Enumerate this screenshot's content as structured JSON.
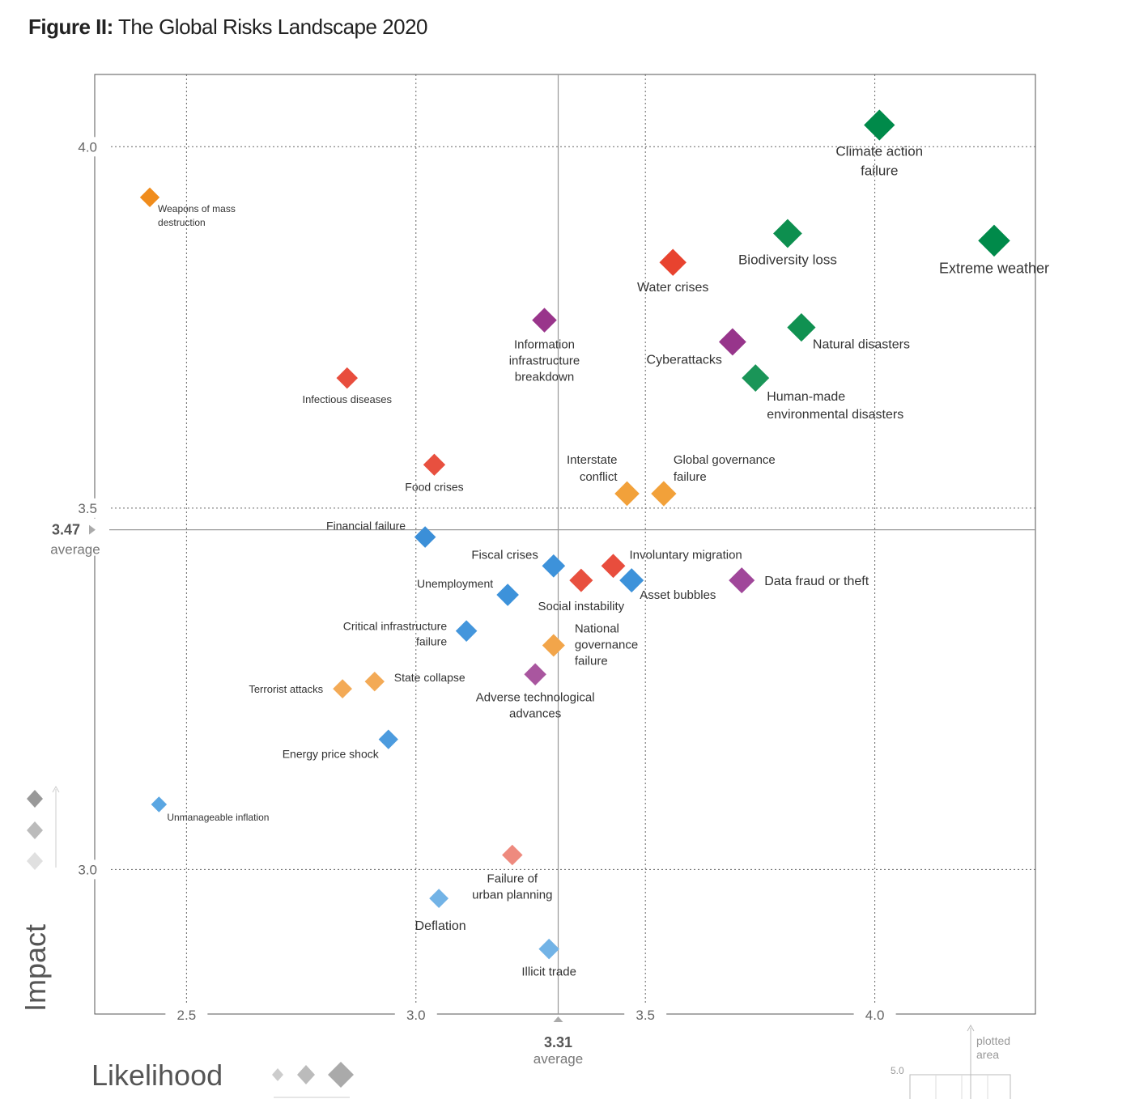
{
  "figure": {
    "prefix": "Figure II:",
    "title": "The Global Risks Landscape 2020"
  },
  "chart_data": {
    "type": "scatter",
    "title": "The Global Risks Landscape 2020",
    "xlabel": "Likelihood",
    "ylabel": "Impact",
    "xlim": [
      2.3,
      4.35
    ],
    "ylim": [
      2.8,
      4.1
    ],
    "x_ticks": [
      "2.5",
      "3.0",
      "3.5",
      "4.0"
    ],
    "y_ticks": [
      "4.0",
      "3.5",
      "3.0"
    ],
    "averages": {
      "x": {
        "value": 3.31,
        "label": "3.31",
        "text": "average"
      },
      "y": {
        "value": 3.47,
        "label": "3.47",
        "text": "average"
      }
    },
    "categories": {
      "Economic": "#3d8fd6",
      "Environmental": "#11895a",
      "Geopolitical": "#f29a2e",
      "Societal": "#e84c3d",
      "Technological": "#9b3c8f"
    },
    "points": [
      {
        "name": "Weapons of mass destruction",
        "lines": [
          "Weapons of mass",
          "destruction"
        ],
        "x": 2.42,
        "y": 3.93,
        "category": "Geopolitical",
        "color": "#f08c1c"
      },
      {
        "name": "Climate action failure",
        "lines": [
          "Climate action",
          "failure"
        ],
        "x": 4.01,
        "y": 4.03,
        "category": "Environmental",
        "color": "#008a4a"
      },
      {
        "name": "Biodiversity loss",
        "lines": [
          "Biodiversity loss"
        ],
        "x": 3.81,
        "y": 3.88,
        "category": "Environmental",
        "color": "#0d8f4f"
      },
      {
        "name": "Extreme weather",
        "lines": [
          "Extreme weather"
        ],
        "x": 4.26,
        "y": 3.87,
        "category": "Environmental",
        "color": "#008a4a"
      },
      {
        "name": "Water crises",
        "lines": [
          "Water crises"
        ],
        "x": 3.56,
        "y": 3.84,
        "category": "Societal",
        "color": "#e8432f"
      },
      {
        "name": "Information infrastructure breakdown",
        "lines": [
          "Information",
          "infrastructure",
          "breakdown"
        ],
        "x": 3.28,
        "y": 3.76,
        "category": "Technological",
        "color": "#99358b"
      },
      {
        "name": "Natural disasters",
        "lines": [
          "Natural disasters"
        ],
        "x": 3.84,
        "y": 3.75,
        "category": "Environmental",
        "color": "#109151"
      },
      {
        "name": "Cyberattacks",
        "lines": [
          "Cyberattacks"
        ],
        "x": 3.69,
        "y": 3.73,
        "category": "Technological",
        "color": "#97358b"
      },
      {
        "name": "Human-made environmental disasters",
        "lines": [
          "Human-made",
          "environmental disasters"
        ],
        "x": 3.74,
        "y": 3.68,
        "category": "Environmental",
        "color": "#1a9558"
      },
      {
        "name": "Infectious diseases",
        "lines": [
          "Infectious diseases"
        ],
        "x": 2.85,
        "y": 3.68,
        "category": "Societal",
        "color": "#e84d3d"
      },
      {
        "name": "Food crises",
        "lines": [
          "Food crises"
        ],
        "x": 3.04,
        "y": 3.56,
        "category": "Societal",
        "color": "#e8503f"
      },
      {
        "name": "Interstate conflict",
        "lines": [
          "Interstate",
          "conflict"
        ],
        "x": 3.46,
        "y": 3.52,
        "category": "Geopolitical",
        "color": "#f2a13a"
      },
      {
        "name": "Global governance failure",
        "lines": [
          "Global governance",
          "failure"
        ],
        "x": 3.54,
        "y": 3.52,
        "category": "Geopolitical",
        "color": "#f2a13a"
      },
      {
        "name": "Financial failure",
        "lines": [
          "Financial failure"
        ],
        "x": 3.02,
        "y": 3.46,
        "category": "Economic",
        "color": "#3b8fd8"
      },
      {
        "name": "Fiscal crises",
        "lines": [
          "Fiscal crises"
        ],
        "x": 3.3,
        "y": 3.42,
        "category": "Economic",
        "color": "#3d92da"
      },
      {
        "name": "Involuntary migration",
        "lines": [
          "Involuntary migration"
        ],
        "x": 3.43,
        "y": 3.42,
        "category": "Societal",
        "color": "#e84d3d"
      },
      {
        "name": "Social instability",
        "lines": [
          "Social instability"
        ],
        "x": 3.36,
        "y": 3.4,
        "category": "Societal",
        "color": "#e8503f"
      },
      {
        "name": "Asset bubbles",
        "lines": [
          "Asset bubbles"
        ],
        "x": 3.47,
        "y": 3.4,
        "category": "Economic",
        "color": "#3d92da"
      },
      {
        "name": "Data fraud or theft",
        "lines": [
          "Data fraud or theft"
        ],
        "x": 3.71,
        "y": 3.4,
        "category": "Technological",
        "color": "#a0479a"
      },
      {
        "name": "Unemployment",
        "lines": [
          "Unemployment"
        ],
        "x": 3.2,
        "y": 3.38,
        "category": "Economic",
        "color": "#3d92da"
      },
      {
        "name": "Critical infrastructure failure",
        "lines": [
          "Critical infrastructure",
          "failure"
        ],
        "x": 3.11,
        "y": 3.33,
        "category": "Economic",
        "color": "#4496dc"
      },
      {
        "name": "National governance failure",
        "lines": [
          "National",
          "governance",
          "failure"
        ],
        "x": 3.3,
        "y": 3.31,
        "category": "Geopolitical",
        "color": "#f2a54a"
      },
      {
        "name": "Adverse technological advances",
        "lines": [
          "Adverse technological",
          "advances"
        ],
        "x": 3.26,
        "y": 3.27,
        "category": "Technological",
        "color": "#a9569f"
      },
      {
        "name": "State collapse",
        "lines": [
          "State collapse"
        ],
        "x": 2.91,
        "y": 3.26,
        "category": "Geopolitical",
        "color": "#f3aa56"
      },
      {
        "name": "Terrorist attacks",
        "lines": [
          "Terrorist attacks"
        ],
        "x": 2.84,
        "y": 3.25,
        "category": "Geopolitical",
        "color": "#f3aa56"
      },
      {
        "name": "Energy price shock",
        "lines": [
          "Energy price shock"
        ],
        "x": 2.94,
        "y": 3.18,
        "category": "Economic",
        "color": "#4c9bde"
      },
      {
        "name": "Unmanageable inflation",
        "lines": [
          "Unmanageable inflation"
        ],
        "x": 2.44,
        "y": 3.09,
        "category": "Economic",
        "color": "#5aa6e2"
      },
      {
        "name": "Failure of urban planning",
        "lines": [
          "Failure of",
          "urban planning"
        ],
        "x": 3.21,
        "y": 3.02,
        "category": "Societal",
        "color": "#ee8a7e"
      },
      {
        "name": "Deflation",
        "lines": [
          "Deflation"
        ],
        "x": 3.05,
        "y": 2.96,
        "category": "Economic",
        "color": "#72b3e6"
      },
      {
        "name": "Illicit trade",
        "lines": [
          "Illicit trade"
        ],
        "x": 3.29,
        "y": 2.89,
        "category": "Economic",
        "color": "#72b3e6"
      }
    ]
  },
  "inset": {
    "label": "plotted area",
    "label_lines": [
      "plotted",
      "area"
    ],
    "value": "5.0"
  }
}
